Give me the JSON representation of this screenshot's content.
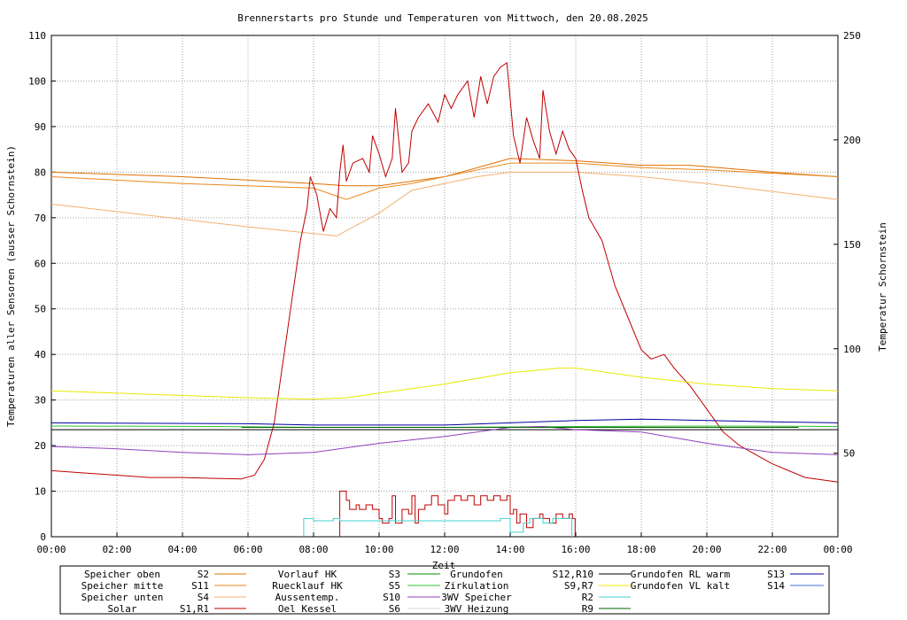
{
  "chart_data": {
    "type": "line",
    "title": "Brennerstarts pro Stunde und Temperaturen von Mittwoch, den 20.08.2025",
    "xlabel": "Zeit",
    "ylabel": "Temperaturen aller Sensoren (ausser Schornstein)",
    "y2label": "Temperatur Schornstein",
    "x_range_hours": [
      0,
      24
    ],
    "ylim": [
      0,
      110
    ],
    "y2lim": [
      10,
      250
    ],
    "x_ticks": [
      {
        "h": 0,
        "label": "00:00"
      },
      {
        "h": 2,
        "label": "02:00"
      },
      {
        "h": 4,
        "label": "04:00"
      },
      {
        "h": 6,
        "label": "06:00"
      },
      {
        "h": 8,
        "label": "08:00"
      },
      {
        "h": 10,
        "label": "10:00"
      },
      {
        "h": 12,
        "label": "12:00"
      },
      {
        "h": 14,
        "label": "14:00"
      },
      {
        "h": 16,
        "label": "16:00"
      },
      {
        "h": 18,
        "label": "18:00"
      },
      {
        "h": 20,
        "label": "20:00"
      },
      {
        "h": 22,
        "label": "22:00"
      },
      {
        "h": 24,
        "label": "00:00"
      }
    ],
    "y_ticks": [
      0,
      10,
      20,
      30,
      40,
      50,
      60,
      70,
      80,
      90,
      100,
      110
    ],
    "y2_ticks": [
      50,
      100,
      150,
      200,
      250
    ],
    "grid": true,
    "legend_placement": "bottom",
    "colors": {
      "s2": "#e07000",
      "s11": "#e88a20",
      "s4": "#f4b070",
      "s1": "#c00000",
      "s3": "#009000",
      "s5": "#30c030",
      "s10": "#9040c0",
      "s6": "#d8d8d8",
      "s12": "#000000",
      "s9": "#e8e800",
      "r2": "#40d0d0",
      "r9": "#006000",
      "s13": "#0000a0",
      "s14": "#4070e0",
      "chimney_label": "#e040e0"
    },
    "legend": [
      {
        "key": "s2",
        "label": "Speicher oben",
        "id": "S2"
      },
      {
        "key": "s11",
        "label": "Speicher mitte",
        "id": "S11"
      },
      {
        "key": "s4",
        "label": "Speicher unten",
        "id": "S4"
      },
      {
        "key": "s1",
        "label": "Solar",
        "id": "S1,R1"
      },
      {
        "key": "s3",
        "label": "Vorlauf HK",
        "id": "S3"
      },
      {
        "key": "s5",
        "label": "Ruecklauf HK",
        "id": "S5"
      },
      {
        "key": "s10",
        "label": "Aussentemp.",
        "id": "S10"
      },
      {
        "key": "s6",
        "label": "Oel Kessel",
        "id": "S6"
      },
      {
        "key": "s12",
        "label": "Grundofen",
        "id": "S12,R10"
      },
      {
        "key": "s9",
        "label": "Zirkulation",
        "id": "S9,R7"
      },
      {
        "key": "r2",
        "label": "3WV Speicher",
        "id": "R2"
      },
      {
        "key": "r9",
        "label": "3WV Heizung",
        "id": "R9"
      },
      {
        "key": "s13",
        "label": "Grundofen RL warm",
        "id": "S13"
      },
      {
        "key": "s14",
        "label": "Grundofen VL kalt",
        "id": "S14"
      }
    ],
    "series": [
      {
        "key": "s2",
        "axis": "y1",
        "points": [
          [
            0,
            80
          ],
          [
            4,
            79
          ],
          [
            8,
            77.5
          ],
          [
            9,
            77
          ],
          [
            10,
            77
          ],
          [
            12,
            79
          ],
          [
            13.5,
            82
          ],
          [
            14,
            83
          ],
          [
            16,
            82.5
          ],
          [
            18,
            81.5
          ],
          [
            19.5,
            81.5
          ],
          [
            22,
            80
          ],
          [
            24,
            79
          ]
        ]
      },
      {
        "key": "s11",
        "axis": "y1",
        "points": [
          [
            0,
            79
          ],
          [
            4,
            77.5
          ],
          [
            8,
            76.5
          ],
          [
            9,
            74
          ],
          [
            10,
            76.5
          ],
          [
            11,
            77.5
          ],
          [
            12,
            79
          ],
          [
            14,
            82
          ],
          [
            16,
            82
          ],
          [
            18,
            81
          ],
          [
            20,
            80.5
          ],
          [
            24,
            79
          ]
        ]
      },
      {
        "key": "s4",
        "axis": "y1",
        "points": [
          [
            0,
            73
          ],
          [
            3,
            70.5
          ],
          [
            6,
            68
          ],
          [
            8.7,
            66
          ],
          [
            10,
            71
          ],
          [
            11,
            76
          ],
          [
            12,
            77.5
          ],
          [
            13,
            79
          ],
          [
            14,
            80
          ],
          [
            16,
            80
          ],
          [
            18,
            79
          ],
          [
            20,
            77.5
          ],
          [
            24,
            74
          ]
        ]
      },
      {
        "key": "s1",
        "axis": "y1",
        "points": [
          [
            0,
            14.5
          ],
          [
            1,
            14
          ],
          [
            2,
            13.5
          ],
          [
            3,
            13
          ],
          [
            4,
            13
          ],
          [
            5,
            12.8
          ],
          [
            5.8,
            12.7
          ],
          [
            6.2,
            13.5
          ],
          [
            6.5,
            17
          ],
          [
            6.8,
            25
          ],
          [
            7,
            35
          ],
          [
            7.3,
            50
          ],
          [
            7.6,
            65
          ],
          [
            7.8,
            72
          ],
          [
            7.9,
            79
          ],
          [
            8.1,
            75
          ],
          [
            8.3,
            67
          ],
          [
            8.5,
            72
          ],
          [
            8.7,
            70
          ],
          [
            8.8,
            80
          ],
          [
            8.9,
            86
          ],
          [
            9,
            78
          ],
          [
            9.2,
            82
          ],
          [
            9.5,
            83
          ],
          [
            9.7,
            80
          ],
          [
            9.8,
            88
          ],
          [
            10,
            84
          ],
          [
            10.2,
            79
          ],
          [
            10.4,
            83
          ],
          [
            10.5,
            94
          ],
          [
            10.7,
            80
          ],
          [
            10.9,
            82
          ],
          [
            11,
            89
          ],
          [
            11.2,
            92
          ],
          [
            11.5,
            95
          ],
          [
            11.8,
            91
          ],
          [
            12,
            97
          ],
          [
            12.2,
            94
          ],
          [
            12.4,
            97
          ],
          [
            12.7,
            100
          ],
          [
            12.9,
            92
          ],
          [
            13.1,
            101
          ],
          [
            13.3,
            95
          ],
          [
            13.5,
            101
          ],
          [
            13.7,
            103
          ],
          [
            13.9,
            104
          ],
          [
            14.1,
            88
          ],
          [
            14.3,
            82
          ],
          [
            14.5,
            92
          ],
          [
            14.7,
            87
          ],
          [
            14.9,
            83
          ],
          [
            15,
            98
          ],
          [
            15.2,
            89
          ],
          [
            15.4,
            84
          ],
          [
            15.6,
            89
          ],
          [
            15.8,
            85
          ],
          [
            16,
            83
          ],
          [
            16.2,
            76
          ],
          [
            16.4,
            70
          ],
          [
            16.8,
            65
          ],
          [
            17.2,
            55
          ],
          [
            17.6,
            48
          ],
          [
            18,
            41
          ],
          [
            18.3,
            39
          ],
          [
            18.7,
            40
          ],
          [
            19,
            37
          ],
          [
            19.5,
            33
          ],
          [
            20,
            28
          ],
          [
            20.5,
            23
          ],
          [
            21,
            20
          ],
          [
            21.5,
            18
          ],
          [
            22,
            16
          ],
          [
            23,
            13
          ],
          [
            24,
            12
          ]
        ]
      },
      {
        "key": "s5",
        "axis": "y1",
        "points": [
          [
            0,
            24.3
          ],
          [
            5,
            24.2
          ],
          [
            8,
            24
          ],
          [
            12,
            24
          ],
          [
            16,
            24.2
          ],
          [
            20,
            24.3
          ],
          [
            24,
            24.2
          ]
        ]
      },
      {
        "key": "s12",
        "axis": "y1",
        "points": [
          [
            0,
            23.5
          ],
          [
            24,
            23.5
          ]
        ]
      },
      {
        "key": "s10",
        "axis": "y1",
        "points": [
          [
            0,
            19.8
          ],
          [
            2,
            19.3
          ],
          [
            4,
            18.5
          ],
          [
            6,
            18
          ],
          [
            8,
            18.5
          ],
          [
            10,
            20.5
          ],
          [
            12,
            22
          ],
          [
            14,
            24
          ],
          [
            15,
            24.2
          ],
          [
            16,
            23.5
          ],
          [
            18,
            23
          ],
          [
            20,
            20.5
          ],
          [
            22,
            18.5
          ],
          [
            24,
            18
          ]
        ]
      },
      {
        "key": "s9",
        "axis": "y1",
        "points": [
          [
            0,
            32
          ],
          [
            2,
            31.5
          ],
          [
            4,
            31
          ],
          [
            6,
            30.5
          ],
          [
            8,
            30.2
          ],
          [
            9,
            30.5
          ],
          [
            10,
            31.5
          ],
          [
            12,
            33.5
          ],
          [
            14,
            36
          ],
          [
            15.5,
            37
          ],
          [
            16,
            37
          ],
          [
            18,
            35
          ],
          [
            20,
            33.5
          ],
          [
            22,
            32.5
          ],
          [
            24,
            32
          ]
        ]
      },
      {
        "key": "s13",
        "axis": "y1",
        "points": [
          [
            0,
            25
          ],
          [
            6,
            24.8
          ],
          [
            8,
            24.5
          ],
          [
            12,
            24.5
          ],
          [
            14,
            25
          ],
          [
            16,
            25.5
          ],
          [
            18,
            25.8
          ],
          [
            20,
            25.5
          ],
          [
            22,
            25.2
          ],
          [
            24,
            25
          ]
        ]
      },
      {
        "key": "r9",
        "axis": "y1",
        "points": [
          [
            5.8,
            24
          ],
          [
            15,
            24
          ],
          [
            22.8,
            24
          ]
        ]
      }
    ],
    "burner_starts": [
      [
        8.8,
        10
      ],
      [
        9,
        8
      ],
      [
        9.1,
        6
      ],
      [
        9.3,
        7
      ],
      [
        9.4,
        6
      ],
      [
        9.6,
        7
      ],
      [
        9.8,
        6
      ],
      [
        10,
        4
      ],
      [
        10.1,
        3
      ],
      [
        10.3,
        4
      ],
      [
        10.4,
        9
      ],
      [
        10.5,
        3
      ],
      [
        10.7,
        6
      ],
      [
        10.9,
        5
      ],
      [
        11,
        9
      ],
      [
        11.1,
        3
      ],
      [
        11.2,
        6
      ],
      [
        11.4,
        7
      ],
      [
        11.6,
        9
      ],
      [
        11.8,
        7
      ],
      [
        12,
        5
      ],
      [
        12.1,
        8
      ],
      [
        12.3,
        9
      ],
      [
        12.5,
        8
      ],
      [
        12.7,
        9
      ],
      [
        12.9,
        7
      ],
      [
        13.1,
        9
      ],
      [
        13.3,
        8
      ],
      [
        13.5,
        9
      ],
      [
        13.7,
        8
      ],
      [
        13.9,
        9
      ],
      [
        14,
        5
      ],
      [
        14.1,
        6
      ],
      [
        14.2,
        3
      ],
      [
        14.3,
        5
      ],
      [
        14.5,
        2
      ],
      [
        14.7,
        4
      ],
      [
        14.9,
        5
      ],
      [
        15,
        4
      ],
      [
        15.2,
        3
      ],
      [
        15.4,
        5
      ],
      [
        15.6,
        4
      ],
      [
        15.8,
        5
      ],
      [
        15.9,
        4
      ]
    ],
    "r2_pulses": [
      [
        7.7,
        4
      ],
      [
        8,
        3.5
      ],
      [
        8.6,
        4
      ],
      [
        8.8,
        3.5
      ],
      [
        9.6,
        3.5
      ],
      [
        13.7,
        4
      ],
      [
        14,
        1
      ],
      [
        14.4,
        3
      ],
      [
        14.6,
        4
      ],
      [
        15,
        3
      ],
      [
        15.3,
        4
      ],
      [
        15.8,
        4
      ]
    ]
  }
}
